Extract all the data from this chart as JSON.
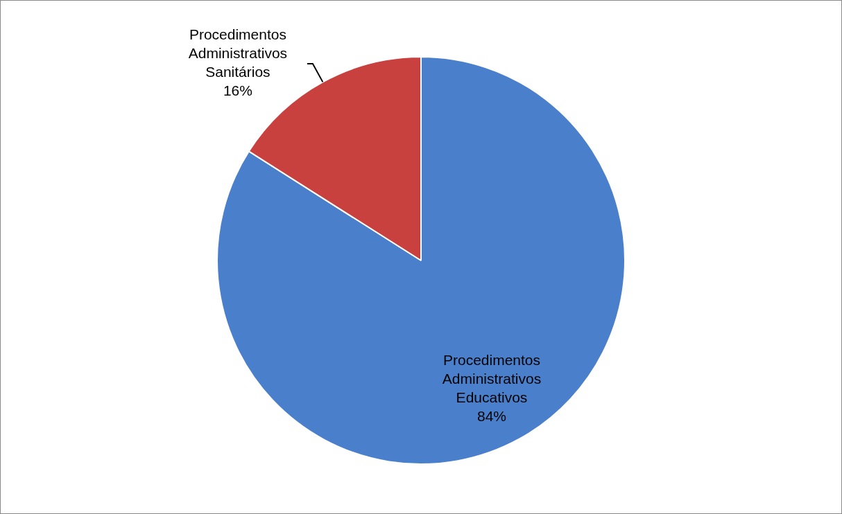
{
  "chart_data": {
    "type": "pie",
    "categories": [
      "Procedimentos Administrativos Educativos",
      "Procedimentos Administrativos Sanitários"
    ],
    "values": [
      84,
      16
    ],
    "colors": [
      "#4a7fcb",
      "#c8413e"
    ],
    "value_labels": [
      "84%",
      "16%"
    ],
    "legend": false
  }
}
